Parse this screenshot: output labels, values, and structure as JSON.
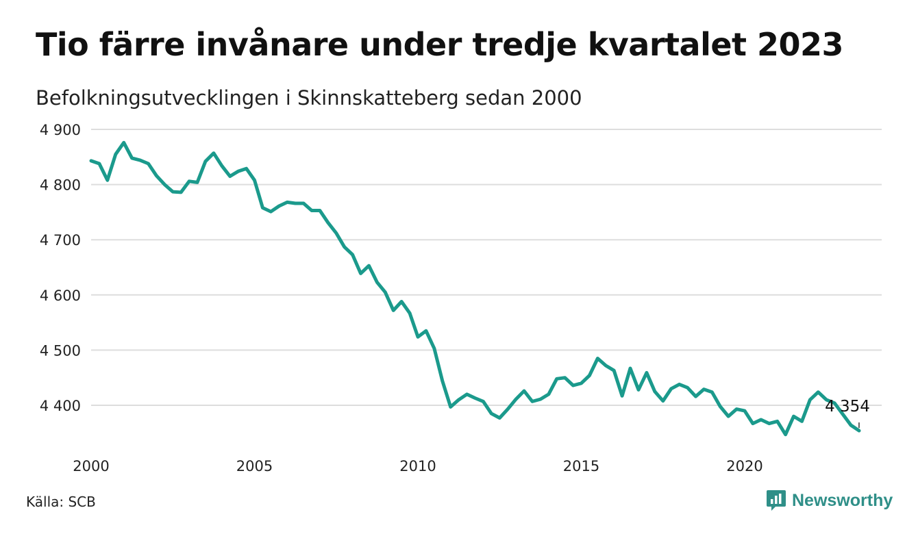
{
  "header": {
    "title": "Tio färre invånare under tredje kvartalet 2023",
    "subtitle": "Befolkningsutvecklingen i Skinnskatteberg sedan 2000"
  },
  "footer": {
    "source": "Källa: SCB",
    "brand": "Newsworthy",
    "brand_icon": "bar-chart-speech-bubble-icon"
  },
  "colors": {
    "line": "#1b9a8c",
    "grid": "#dddddd",
    "brand": "#2f8f88"
  },
  "chart_data": {
    "type": "line",
    "x_unit": "quarter",
    "xlim": [
      2000,
      2024.5
    ],
    "ylim": [
      4340,
      4900
    ],
    "y_ticks": [
      4900,
      4800,
      4700,
      4600,
      4500,
      4400
    ],
    "y_tick_labels": [
      "4 900",
      "4 800",
      "4 700",
      "4 600",
      "4 500",
      "4 400"
    ],
    "x_ticks": [
      2000,
      2005,
      2010,
      2015,
      2020
    ],
    "x_tick_labels": [
      "2000",
      "2005",
      "2010",
      "2015",
      "2020"
    ],
    "grid": "horizontal",
    "start_quarter": "2000-Q1",
    "values": [
      4843,
      4838,
      4808,
      4855,
      4876,
      4848,
      4844,
      4838,
      4816,
      4800,
      4787,
      4786,
      4806,
      4804,
      4842,
      4857,
      4834,
      4815,
      4824,
      4829,
      4808,
      4758,
      4751,
      4761,
      4768,
      4766,
      4766,
      4753,
      4753,
      4731,
      4712,
      4687,
      4673,
      4639,
      4653,
      4623,
      4605,
      4572,
      4588,
      4567,
      4524,
      4535,
      4503,
      4444,
      4397,
      4410,
      4420,
      4413,
      4407,
      4385,
      4377,
      4393,
      4411,
      4426,
      4407,
      4411,
      4420,
      4448,
      4450,
      4436,
      4440,
      4454,
      4485,
      4472,
      4463,
      4417,
      4467,
      4428,
      4459,
      4425,
      4408,
      4430,
      4438,
      4432,
      4416,
      4429,
      4424,
      4398,
      4380,
      4393,
      4390,
      4367,
      4374,
      4367,
      4371,
      4347,
      4380,
      4371,
      4410,
      4424,
      4410,
      4404,
      4384,
      4364,
      4354
    ],
    "end_label": "4 354"
  }
}
